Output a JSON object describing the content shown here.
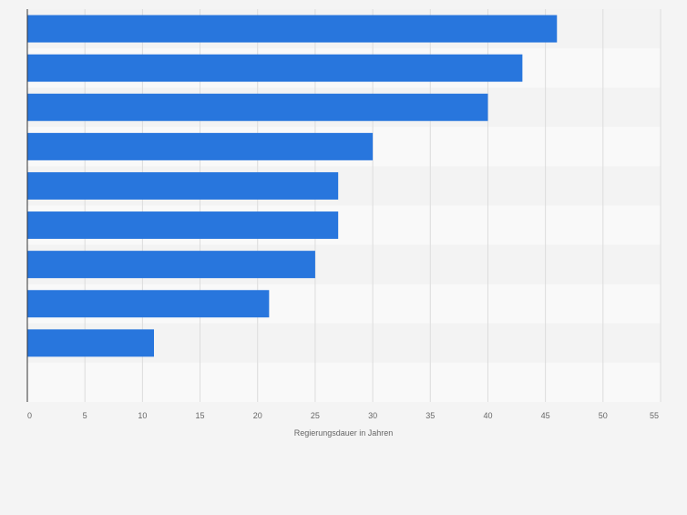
{
  "chart_data": {
    "type": "bar",
    "orientation": "horizontal",
    "title": "",
    "xlabel": "Regierungsdauer in Jahren",
    "ylabel": "",
    "categories": [
      "",
      "",
      "",
      "",
      "",
      "",
      "",
      "",
      ""
    ],
    "values": [
      46,
      43,
      40,
      30,
      27,
      27,
      25,
      21,
      11
    ],
    "xlim": [
      0,
      55
    ],
    "xticks": [
      0,
      5,
      10,
      15,
      20,
      25,
      30,
      35,
      40,
      45,
      50,
      55
    ],
    "grid": true,
    "legend": "none",
    "colors": {
      "bar": "#2876dd",
      "band_light": "#f9f9f9",
      "band_dark": "#f3f3f3",
      "grid": "#dcdcdc",
      "axis": "#333333",
      "tick_text": "#666666",
      "background": "#f4f4f4"
    }
  }
}
